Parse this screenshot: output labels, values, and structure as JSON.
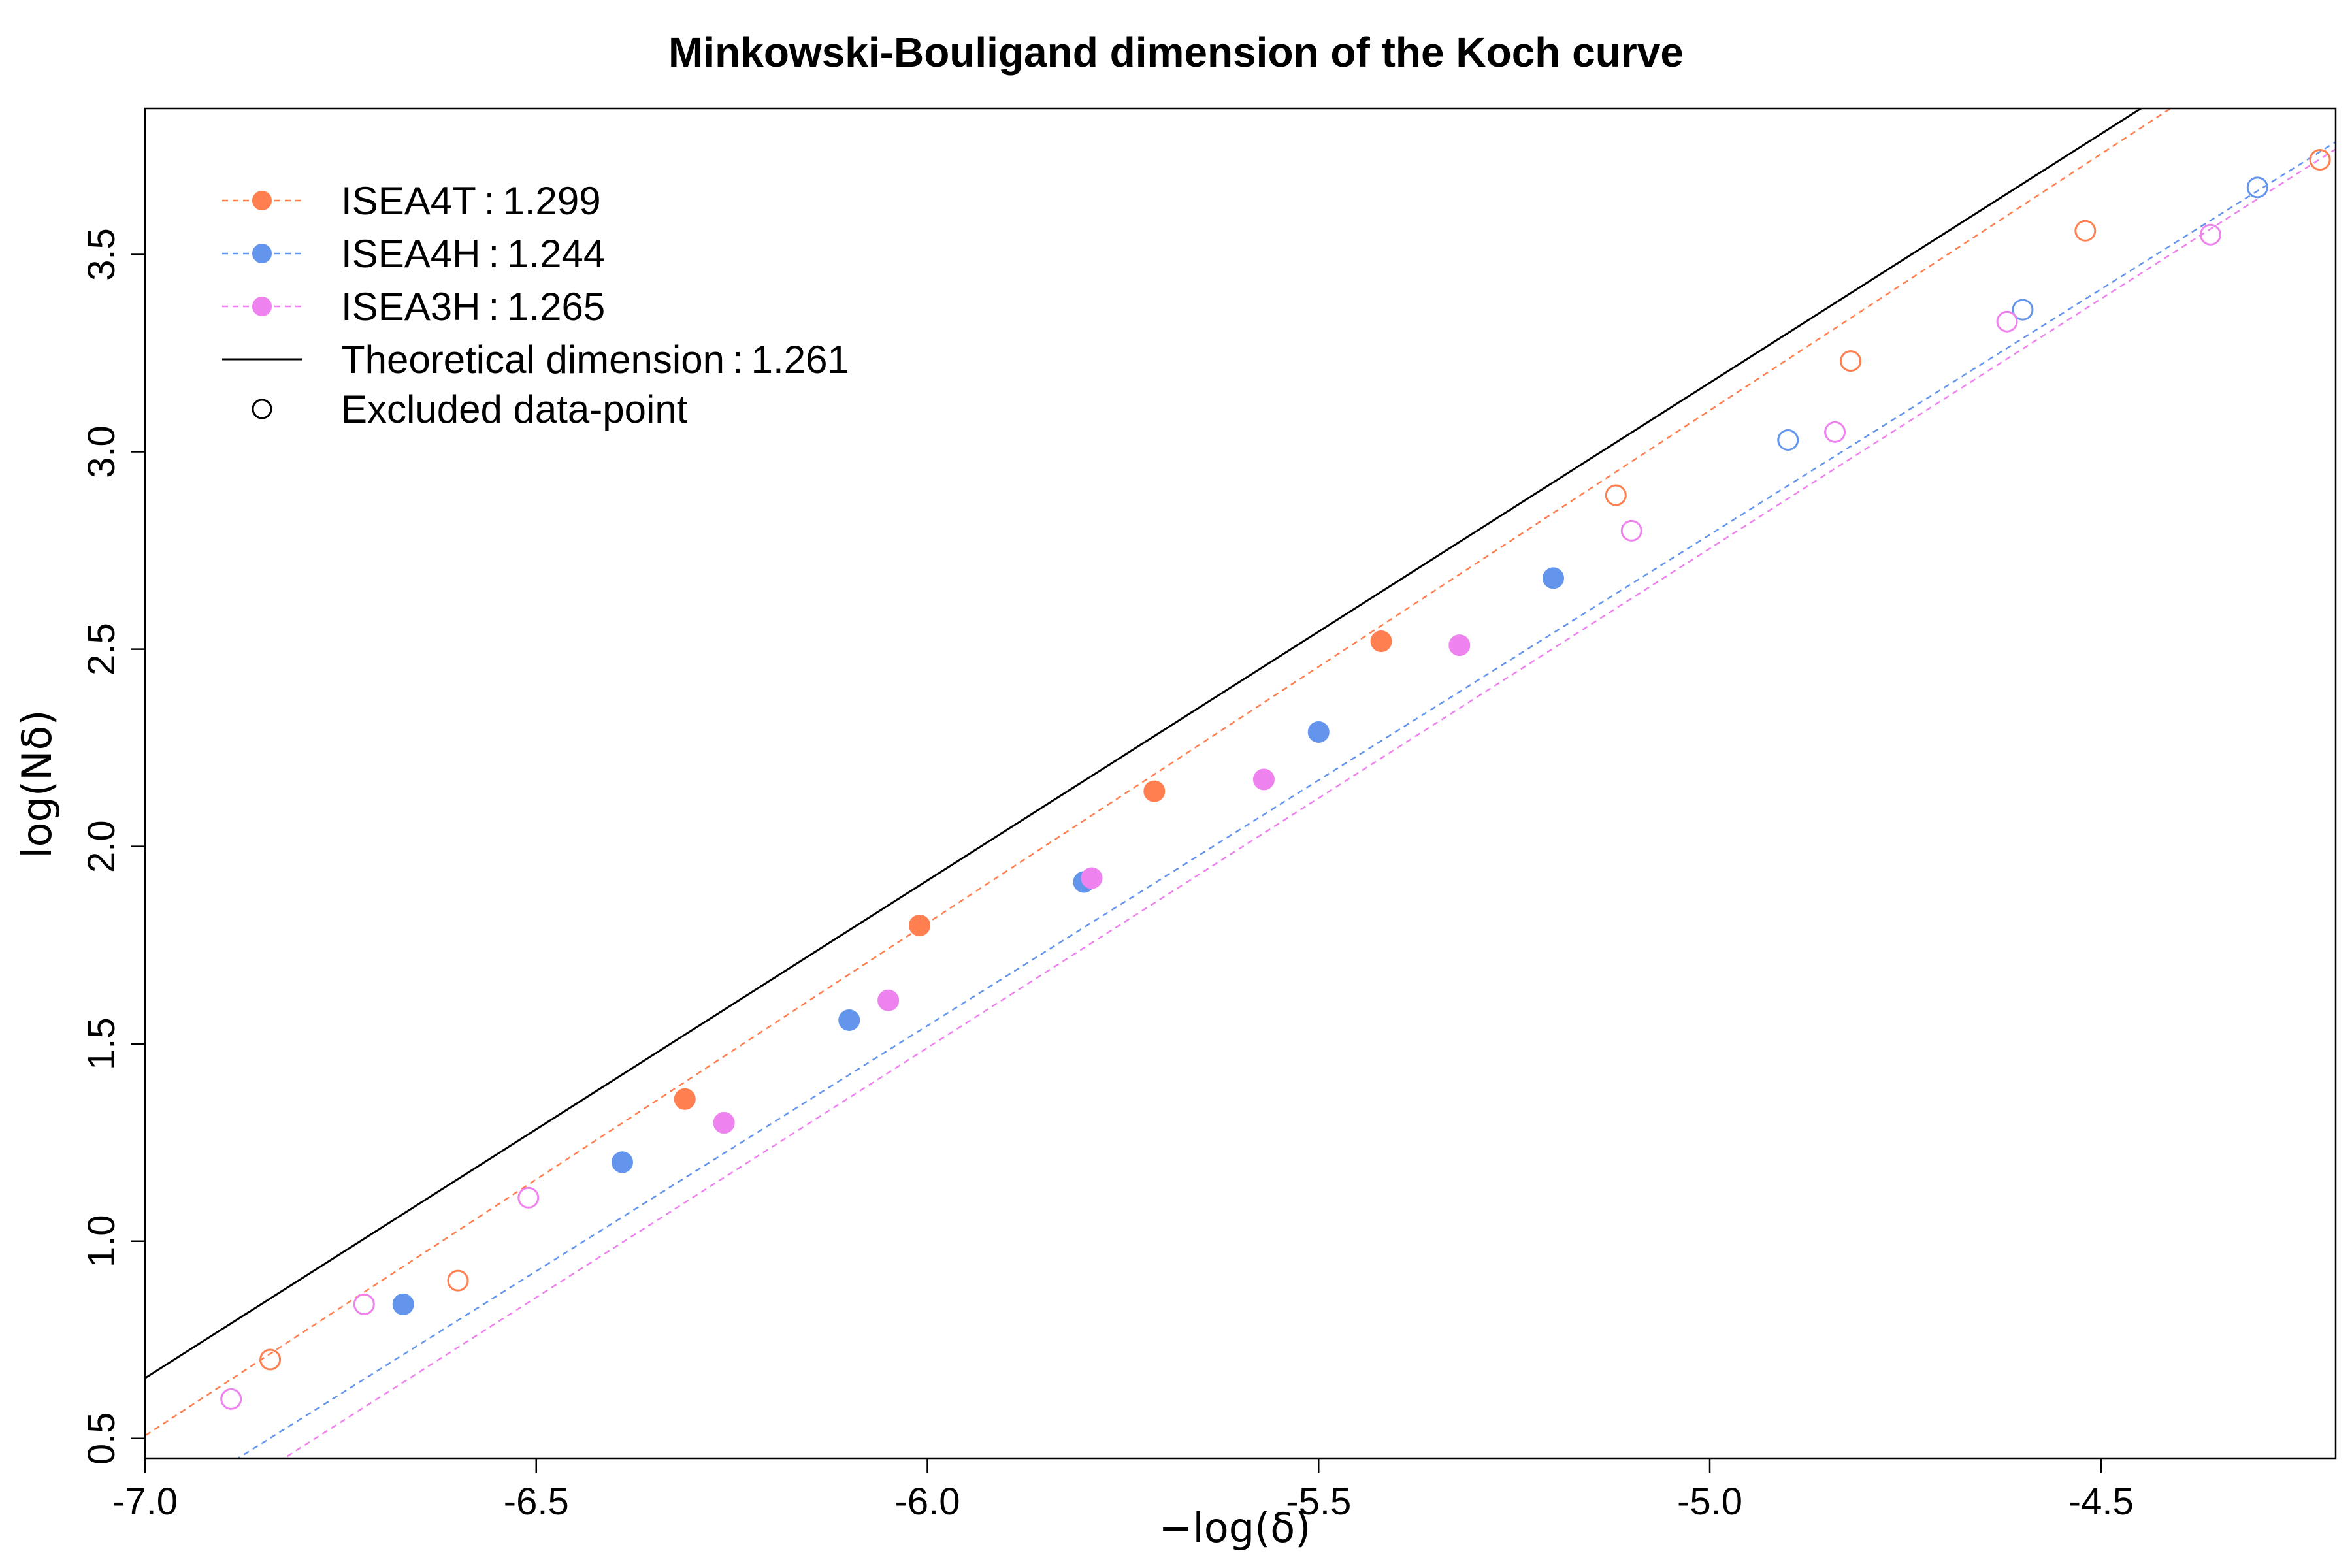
{
  "chart_data": {
    "type": "scatter",
    "title": "Minkowski-Bouligand dimension of the Koch curve",
    "xlabel": "−log(δ)",
    "ylabel": "log(Nδ)",
    "xlim": [
      -7.0,
      -4.2
    ],
    "ylim": [
      0.45,
      3.87
    ],
    "xticks": [
      -7.0,
      -6.5,
      -6.0,
      -5.5,
      -5.0,
      -4.5
    ],
    "xtick_labels": [
      "-7.0",
      "-6.5",
      "-6.0",
      "-5.5",
      "-5.0",
      "-4.5"
    ],
    "yticks": [
      0.5,
      1.0,
      1.5,
      2.0,
      2.5,
      3.0,
      3.5
    ],
    "ytick_labels": [
      "0.5",
      "1.0",
      "1.5",
      "2.0",
      "2.5",
      "3.0",
      "3.5"
    ],
    "grid": false,
    "legend_position": "top-left",
    "series": [
      {
        "name": "ISEA4T",
        "dimension_label": "1.299",
        "color": "#FF7F50",
        "slope": 1.299,
        "intercept": 9.6,
        "included": [
          [
            -6.31,
            1.36
          ],
          [
            -6.01,
            1.8
          ],
          [
            -5.71,
            2.14
          ],
          [
            -5.42,
            2.52
          ]
        ],
        "excluded": [
          [
            -6.84,
            0.7
          ],
          [
            -6.6,
            0.9
          ],
          [
            -5.12,
            2.89
          ],
          [
            -4.82,
            3.23
          ],
          [
            -4.52,
            3.56
          ],
          [
            -4.22,
            3.74
          ]
        ]
      },
      {
        "name": "ISEA4H",
        "dimension_label": "1.244",
        "color": "#6495ED",
        "slope": 1.244,
        "intercept": 9.01,
        "included": [
          [
            -6.67,
            0.84
          ],
          [
            -6.39,
            1.2
          ],
          [
            -6.1,
            1.56
          ],
          [
            -5.8,
            1.91
          ],
          [
            -5.5,
            2.29
          ],
          [
            -5.2,
            2.68
          ]
        ],
        "excluded": [
          [
            -4.9,
            3.03
          ],
          [
            -4.6,
            3.36
          ],
          [
            -4.3,
            3.67
          ]
        ]
      },
      {
        "name": "ISEA3H",
        "dimension_label": "1.265",
        "color": "#EE82EE",
        "slope": 1.265,
        "intercept": 9.08,
        "included": [
          [
            -6.26,
            1.3
          ],
          [
            -6.05,
            1.61
          ],
          [
            -5.79,
            1.92
          ],
          [
            -5.57,
            2.17
          ],
          [
            -5.32,
            2.51
          ]
        ],
        "excluded": [
          [
            -6.89,
            0.6
          ],
          [
            -6.72,
            0.84
          ],
          [
            -6.51,
            1.11
          ],
          [
            -5.1,
            2.8
          ],
          [
            -4.84,
            3.05
          ],
          [
            -4.62,
            3.33
          ],
          [
            -4.36,
            3.55
          ]
        ]
      },
      {
        "name": "Theoretical dimension",
        "dimension_label": "1.261",
        "color": "#000000",
        "slope": 1.261,
        "intercept": 9.48,
        "line_style": "solid"
      }
    ],
    "legend": [
      {
        "label": "ISEA4T",
        "value": "1.299",
        "color": "#FF7F50",
        "kind": "dashed-dot"
      },
      {
        "label": "ISEA4H",
        "value": "1.244",
        "color": "#6495ED",
        "kind": "dashed-dot"
      },
      {
        "label": "ISEA3H",
        "value": "1.265",
        "color": "#EE82EE",
        "kind": "dashed-dot"
      },
      {
        "label": "Theoretical dimension",
        "value": "1.261",
        "color": "#000000",
        "kind": "solid"
      },
      {
        "label": "Excluded data-point",
        "value": "",
        "color": "#000000",
        "kind": "open-circle"
      }
    ]
  }
}
